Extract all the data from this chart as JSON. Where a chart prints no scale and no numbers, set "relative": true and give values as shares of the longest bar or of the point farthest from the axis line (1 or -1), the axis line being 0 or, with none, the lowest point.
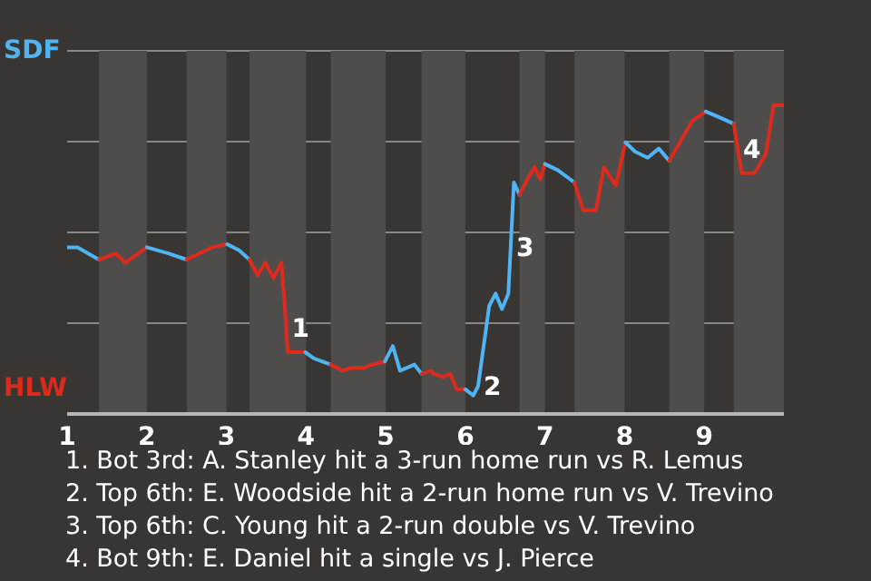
{
  "chart_data": {
    "type": "line",
    "relative": true,
    "grid": "y",
    "legend": false,
    "marker": "none",
    "line_style": "solid",
    "xlim": [
      1,
      10
    ],
    "xticks": [
      1,
      2,
      3,
      4,
      5,
      6,
      7,
      8,
      9
    ],
    "series": [
      {
        "color": "#4fb4f0",
        "x": [
          1.0,
          1.13,
          1.4
        ],
        "values": [
          0.54,
          0.54,
          0.5
        ]
      },
      {
        "color": "#de2a1c",
        "x": [
          1.4,
          1.61,
          1.73,
          2.0
        ],
        "values": [
          0.5,
          0.52,
          0.49,
          0.54
        ]
      },
      {
        "color": "#4fb4f0",
        "x": [
          2.0,
          2.27,
          2.5
        ],
        "values": [
          0.54,
          0.52,
          0.5
        ]
      },
      {
        "color": "#de2a1c",
        "x": [
          2.5,
          2.82,
          3.01
        ],
        "values": [
          0.5,
          0.54,
          0.55
        ]
      },
      {
        "color": "#4fb4f2",
        "x": [
          3.01,
          3.16,
          3.29
        ],
        "values": [
          0.55,
          0.53,
          0.5
        ]
      },
      {
        "color": "#de2a1c",
        "x": [
          3.29,
          3.39,
          3.49,
          3.59,
          3.69,
          3.73,
          3.77,
          3.99
        ],
        "values": [
          0.5,
          0.45,
          0.49,
          0.44,
          0.49,
          0.36,
          0.2,
          0.2
        ]
      },
      {
        "color": "#4fb4f0",
        "x": [
          3.99,
          4.1,
          4.31
        ],
        "values": [
          0.2,
          0.18,
          0.16
        ]
      },
      {
        "color": "#de2a1c",
        "x": [
          4.31,
          4.46,
          4.58,
          4.73,
          4.83,
          4.99
        ],
        "values": [
          0.16,
          0.14,
          0.15,
          0.15,
          0.16,
          0.17
        ]
      },
      {
        "color": "#4fb4f0",
        "x": [
          4.99,
          5.09,
          5.18,
          5.36,
          5.45
        ],
        "values": [
          0.17,
          0.22,
          0.14,
          0.16,
          0.13
        ]
      },
      {
        "color": "#de2a1c",
        "x": [
          5.45,
          5.57,
          5.6,
          5.72,
          5.81,
          5.89,
          6.0
        ],
        "values": [
          0.13,
          0.14,
          0.13,
          0.12,
          0.13,
          0.08,
          0.08
        ]
      },
      {
        "color": "#4fb4f4",
        "x": [
          6.0,
          6.1,
          6.16,
          6.3,
          6.38,
          6.46,
          6.54,
          6.61,
          6.68
        ],
        "values": [
          0.08,
          0.06,
          0.09,
          0.35,
          0.39,
          0.34,
          0.39,
          0.75,
          0.71
        ]
      },
      {
        "color": "#de2a1c",
        "x": [
          6.68,
          6.78,
          6.87,
          6.94,
          7.0
        ],
        "values": [
          0.71,
          0.76,
          0.8,
          0.76,
          0.81
        ]
      },
      {
        "color": "#4fb4f6",
        "x": [
          7.0,
          7.16,
          7.37
        ],
        "values": [
          0.81,
          0.79,
          0.75
        ]
      },
      {
        "color": "#de2a1c",
        "x": [
          7.37,
          7.48,
          7.64,
          7.74,
          7.89,
          8.01
        ],
        "values": [
          0.75,
          0.66,
          0.66,
          0.8,
          0.74,
          0.88
        ]
      },
      {
        "color": "#4fb4f8",
        "x": [
          8.01,
          8.13,
          8.29,
          8.43,
          8.56
        ],
        "values": [
          0.88,
          0.85,
          0.83,
          0.86,
          0.82
        ]
      },
      {
        "color": "#de2a1c",
        "x": [
          8.56,
          8.85,
          9.02
        ],
        "values": [
          0.82,
          0.95,
          0.98
        ]
      },
      {
        "color": "#4fb4fa",
        "x": [
          9.02,
          9.2,
          9.37
        ],
        "values": [
          0.98,
          0.96,
          0.94
        ]
      },
      {
        "color": "#de2a1c",
        "x": [
          9.37,
          9.47,
          9.63,
          9.77,
          9.87,
          10
        ],
        "values": [
          0.94,
          0.78,
          0.78,
          0.84,
          1,
          1
        ]
      }
    ],
    "bands": [
      {
        "axis": "x",
        "from": 1.4,
        "to": 2,
        "color": "#4f4d4b"
      },
      {
        "axis": "x",
        "from": 2.5,
        "to": 3,
        "color": "#4f4d4b"
      },
      {
        "axis": "x",
        "from": 3.29,
        "to": 4,
        "color": "#4f4d4b"
      },
      {
        "axis": "x",
        "from": 4.31,
        "to": 5,
        "color": "#4f4d4b"
      },
      {
        "axis": "x",
        "from": 5.45,
        "to": 6,
        "color": "#4f4d4b"
      },
      {
        "axis": "x",
        "from": 6.68,
        "to": 7,
        "color": "#4f4d4b"
      },
      {
        "axis": "x",
        "from": 7.37,
        "to": 8,
        "color": "#4f4d4b"
      },
      {
        "axis": "x",
        "from": 8.56,
        "to": 9,
        "color": "#4f4d4b"
      },
      {
        "axis": "x",
        "from": 9.37,
        "to": 10,
        "color": "#4f4d4b"
      }
    ],
    "annotations": [
      "SDF",
      "HLW",
      {
        "text": "1",
        "x": 3.75,
        "y": 0.28
      },
      {
        "text": "2",
        "x": 6.16,
        "y": 0.09
      },
      {
        "text": "3",
        "x": 6.57,
        "y": 0.54
      },
      {
        "text": "4",
        "x": 9.42,
        "y": 0.86
      },
      "1. Bot 3rd: A. Stanley hit a 3-run home run vs R. Lemus",
      "2. Top 6th: E. Woodside hit a 2-run home run vs V. Trevino",
      "3. Top 6th: C. Young hit a 2-run double vs V. Trevino",
      "4. Bot 9th: E. Daniel hit a single vs J. Pierce"
    ]
  }
}
